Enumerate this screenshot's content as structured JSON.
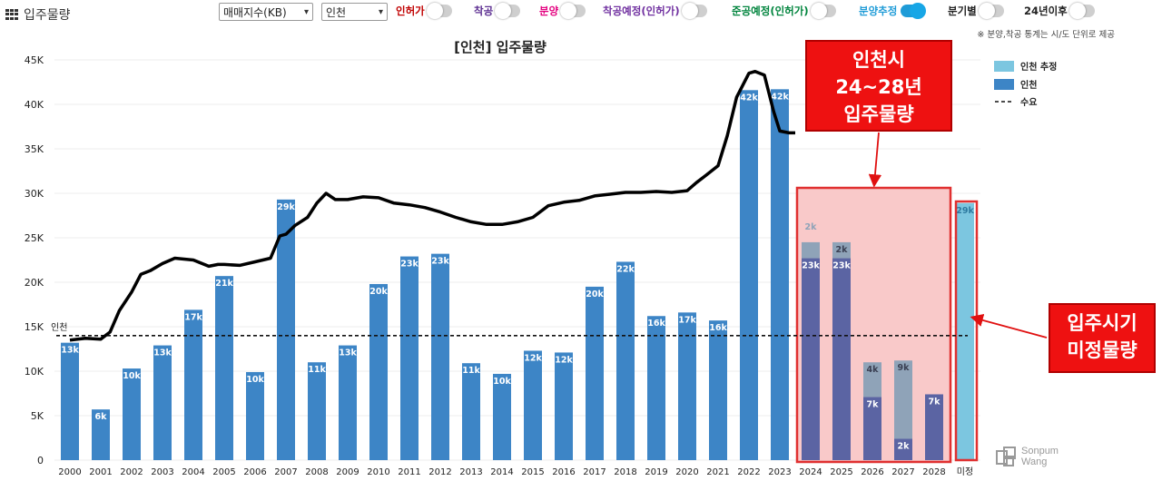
{
  "app_title": "입주물량",
  "controls": {
    "select_index": "매매지수(KB)",
    "select_region": "인천",
    "toggles": [
      {
        "label": "인허가",
        "on": false,
        "color": "#c00000"
      },
      {
        "label": "착공",
        "on": false,
        "color": "#5b2d90"
      },
      {
        "label": "분양",
        "on": false,
        "color": "#e4007f"
      },
      {
        "label": "착공예정(인허가)",
        "on": false,
        "color": "#7030a0"
      },
      {
        "label": "준공예정(인허가)",
        "on": false,
        "color": "#00843d"
      },
      {
        "label": "분양추정",
        "on": true,
        "color": "#1e9bd7"
      },
      {
        "label": "분기별",
        "on": false,
        "color": "#222222"
      },
      {
        "label": "24년이후",
        "on": false,
        "color": "#222222"
      }
    ]
  },
  "note": "※ 분양,착공 통계는 시/도 단위로 제공",
  "chart_data": {
    "type": "bar",
    "title": "[인천] 입주물량",
    "categories": [
      "2000",
      "2001",
      "2002",
      "2003",
      "2004",
      "2005",
      "2006",
      "2007",
      "2008",
      "2009",
      "2010",
      "2011",
      "2012",
      "2013",
      "2014",
      "2015",
      "2016",
      "2017",
      "2018",
      "2019",
      "2020",
      "2021",
      "2022",
      "2023",
      "2024",
      "2025",
      "2026",
      "2027",
      "2028",
      "미정"
    ],
    "series": [
      {
        "name": "인천",
        "color": "#3d85c6",
        "values": [
          13200,
          5700,
          10300,
          12900,
          16900,
          20700,
          9900,
          29300,
          11000,
          12900,
          19800,
          22900,
          23200,
          10900,
          9700,
          12300,
          12100,
          19500,
          22300,
          16200,
          16600,
          15700,
          41600,
          41700,
          22700,
          22700,
          7100,
          2400,
          7400,
          0
        ],
        "labels": [
          "13k",
          "6k",
          "10k",
          "13k",
          "17k",
          "21k",
          "10k",
          "29k",
          "11k",
          "13k",
          "20k",
          "23k",
          "23k",
          "11k",
          "10k",
          "12k",
          "12k",
          "20k",
          "22k",
          "16k",
          "17k",
          "16k",
          "42k",
          "42k",
          "23k",
          "23k",
          "7k",
          "2k",
          "7k",
          ""
        ]
      },
      {
        "name": "인천 추정",
        "color": "#7cc6e0",
        "values": [
          0,
          0,
          0,
          0,
          0,
          0,
          0,
          0,
          0,
          0,
          0,
          0,
          0,
          0,
          0,
          0,
          0,
          0,
          0,
          0,
          0,
          0,
          0,
          0,
          1800,
          1800,
          3900,
          8800,
          0,
          28900
        ],
        "labels": [
          "",
          "",
          "",
          "",
          "",
          "",
          "",
          "",
          "",
          "",
          "",
          "",
          "",
          "",
          "",
          "",
          "",
          "",
          "",
          "",
          "",
          "",
          "",
          "",
          "2k",
          "2k",
          "4k",
          "9k",
          "",
          "29k"
        ]
      }
    ],
    "demand": {
      "name": "수요",
      "value": 14000,
      "label": "인천"
    },
    "price_index_line": {
      "x": [
        2000.0,
        2000.5,
        2001.0,
        2001.3,
        2001.6,
        2002.0,
        2002.3,
        2002.6,
        2003.0,
        2003.4,
        2003.7,
        2004.0,
        2004.5,
        2004.8,
        2005.0,
        2005.5,
        2006.0,
        2006.5,
        2006.8,
        2007.0,
        2007.3,
        2007.7,
        2008.0,
        2008.3,
        2008.6,
        2009.0,
        2009.5,
        2010.0,
        2010.5,
        2011.0,
        2011.5,
        2012.0,
        2012.5,
        2013.0,
        2013.5,
        2014.0,
        2014.5,
        2015.0,
        2015.5,
        2016.0,
        2016.5,
        2017.0,
        2017.5,
        2018.0,
        2018.5,
        2019.0,
        2019.5,
        2020.0,
        2020.3,
        2020.6,
        2021.0,
        2021.3,
        2021.6,
        2022.0,
        2022.2,
        2022.5,
        2022.8,
        2023.0,
        2023.3,
        2023.5
      ],
      "values": [
        13500,
        13700,
        13600,
        14400,
        16800,
        18900,
        20900,
        21300,
        22100,
        22700,
        22600,
        22500,
        21800,
        22000,
        22000,
        21900,
        22300,
        22700,
        25200,
        25400,
        26400,
        27300,
        28900,
        30000,
        29300,
        29300,
        29600,
        29500,
        28900,
        28700,
        28400,
        27900,
        27300,
        26800,
        26500,
        26500,
        26800,
        27300,
        28600,
        29000,
        29200,
        29700,
        29900,
        30100,
        30100,
        30200,
        30100,
        30300,
        31200,
        32000,
        33100,
        36500,
        40800,
        43500,
        43700,
        43300,
        39200,
        37000,
        36800,
        36800
      ],
      "color": "#000000"
    },
    "y_ticks": [
      "0",
      "5K",
      "10K",
      "15K",
      "20K",
      "25K",
      "30K",
      "35K",
      "40K",
      "45K"
    ],
    "ylim": [
      0,
      45000
    ],
    "legend": [
      "인천 추정",
      "인천",
      "수요"
    ],
    "legend_position": "right",
    "grid": true,
    "annotations": {
      "callout1": [
        "인천시",
        "24~28년",
        "입주물량"
      ],
      "callout2": [
        "입주시기",
        "미정물량"
      ]
    }
  },
  "brand": {
    "line1": "Sonpum",
    "line2": "Wang"
  }
}
